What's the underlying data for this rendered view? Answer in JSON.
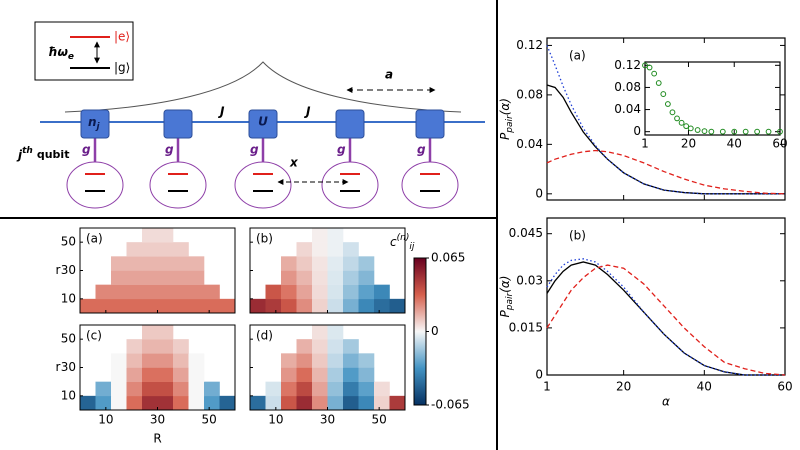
{
  "diagram": {
    "excited": "|e⟩",
    "ground": "|g⟩",
    "energy": "ħω",
    "energy_sub": "e",
    "n": "n",
    "n_sub": "j",
    "U": "U",
    "J": [
      "J",
      "J"
    ],
    "g": [
      "g",
      "g",
      "g",
      "g",
      "g"
    ],
    "a": "a",
    "x": "x",
    "qubit": "j",
    "qubit_sup": "th",
    "qubit_suffix": "qubit"
  },
  "chart_data": [
    {
      "type": "heatmap",
      "xlabel": "R",
      "ylabel": "r",
      "xlim": [
        0,
        60
      ],
      "ylim": [
        0,
        60
      ],
      "xticks": [
        10,
        30,
        50
      ],
      "yticks": [
        10,
        30,
        50
      ],
      "x": [
        3,
        9,
        15,
        21,
        27,
        33,
        39,
        45,
        51,
        57
      ],
      "y": [
        5,
        15,
        25,
        35,
        45,
        55
      ],
      "zlim": [
        -0.065,
        0.065
      ],
      "zticks": [
        -0.065,
        0,
        0.065
      ],
      "colorbar_label": "c",
      "colorbar_label_sub": "ij",
      "colorbar_label_sup": "(n)",
      "colors": [
        "#053061",
        "#4393c3",
        "#f7f7f7",
        "#d6604d",
        "#67001f"
      ],
      "panels": [
        {
          "label": "(a)",
          "z": [
            [
              0.03,
              0.03,
              0.03,
              0.03,
              0.03,
              0.03,
              0.03,
              0.03,
              0.03,
              0.03
            ],
            [
              null,
              0.024,
              0.024,
              0.024,
              0.024,
              0.024,
              0.024,
              0.024,
              0.024,
              null
            ],
            [
              null,
              null,
              0.018,
              0.018,
              0.018,
              0.018,
              0.018,
              0.018,
              null,
              null
            ],
            [
              null,
              null,
              0.014,
              0.014,
              0.014,
              0.014,
              0.014,
              0.014,
              null,
              null
            ],
            [
              null,
              null,
              null,
              0.009,
              0.009,
              0.009,
              0.009,
              null,
              null,
              null
            ],
            [
              null,
              null,
              null,
              null,
              0.006,
              0.006,
              null,
              null,
              null,
              null
            ]
          ]
        },
        {
          "label": "(b)",
          "z": [
            [
              0.05,
              0.045,
              0.036,
              0.023,
              0.008,
              -0.008,
              -0.023,
              -0.036,
              -0.045,
              -0.05
            ],
            [
              null,
              0.036,
              0.028,
              0.018,
              0.006,
              -0.006,
              -0.018,
              -0.028,
              -0.036,
              null
            ],
            [
              null,
              null,
              0.021,
              0.014,
              0.005,
              -0.005,
              -0.014,
              -0.021,
              null,
              null
            ],
            [
              null,
              null,
              0.016,
              0.01,
              0.004,
              -0.004,
              -0.01,
              -0.016,
              null,
              null
            ],
            [
              null,
              null,
              null,
              0.007,
              0.002,
              -0.002,
              -0.007,
              null,
              null,
              null
            ],
            [
              null,
              null,
              null,
              null,
              0.002,
              -0.002,
              null,
              null,
              null,
              null
            ]
          ]
        },
        {
          "label": "(c)",
          "z": [
            [
              -0.048,
              -0.03,
              0,
              0.03,
              0.048,
              0.048,
              0.03,
              0,
              -0.03,
              -0.048
            ],
            [
              null,
              -0.024,
              0,
              0.024,
              0.038,
              0.038,
              0.024,
              0,
              -0.024,
              null
            ],
            [
              null,
              null,
              0,
              0.018,
              0.029,
              0.029,
              0.018,
              0,
              null,
              null
            ],
            [
              null,
              null,
              0,
              0.013,
              0.021,
              0.021,
              0.013,
              0,
              null,
              null
            ],
            [
              null,
              null,
              null,
              0.009,
              0.014,
              0.014,
              0.009,
              null,
              null,
              null
            ],
            [
              null,
              null,
              null,
              null,
              0.01,
              0.01,
              null,
              null,
              null,
              null
            ]
          ]
        },
        {
          "label": "(d)",
          "z": [
            [
              -0.045,
              -0.008,
              0.036,
              0.05,
              0.023,
              -0.023,
              -0.05,
              -0.036,
              0.008,
              0.045
            ],
            [
              null,
              -0.006,
              0.028,
              0.04,
              0.018,
              -0.018,
              -0.04,
              -0.028,
              0.006,
              null
            ],
            [
              null,
              null,
              0.021,
              0.03,
              0.014,
              -0.014,
              -0.03,
              -0.021,
              null,
              null
            ],
            [
              null,
              null,
              0.016,
              0.022,
              0.01,
              -0.01,
              -0.022,
              -0.016,
              null,
              null
            ],
            [
              null,
              null,
              null,
              0.015,
              0.007,
              -0.007,
              -0.015,
              null,
              null,
              null
            ],
            [
              null,
              null,
              null,
              null,
              0.005,
              -0.005,
              null,
              null,
              null,
              null
            ]
          ]
        }
      ]
    },
    {
      "type": "line",
      "label": "(a)",
      "ylabel": "P",
      "ylabel_sub": "pair",
      "ylabel_suffix": "(α)",
      "xlim": [
        1,
        60
      ],
      "ylim": [
        -0.005,
        0.126
      ],
      "xticks": [
        1,
        20,
        40,
        60
      ],
      "show_xtick_labels": false,
      "yticks": [
        0,
        0.04,
        0.08,
        0.12
      ],
      "x": [
        1,
        3,
        5,
        7,
        10,
        13,
        16,
        20,
        25,
        30,
        35,
        40,
        45,
        50,
        55,
        60
      ],
      "series": [
        {
          "color": "#000000",
          "style": "solid",
          "values": [
            0.088,
            0.086,
            0.078,
            0.066,
            0.05,
            0.038,
            0.028,
            0.017,
            0.008,
            0.003,
            0.001,
            0,
            0,
            0,
            0,
            0
          ]
        },
        {
          "color": "#1f3fd6",
          "style": "dotted",
          "values": [
            0.12,
            0.104,
            0.087,
            0.072,
            0.053,
            0.039,
            0.028,
            0.017,
            0.008,
            0.003,
            0.001,
            0,
            0,
            0,
            0,
            0
          ]
        },
        {
          "color": "#e0201b",
          "style": "dashed",
          "values": [
            0.025,
            0.028,
            0.03,
            0.032,
            0.034,
            0.035,
            0.034,
            0.031,
            0.025,
            0.018,
            0.012,
            0.007,
            0.004,
            0.002,
            0.0005,
            0
          ]
        }
      ]
    },
    {
      "type": "scatter",
      "xlim": [
        1,
        60
      ],
      "ylim": [
        -0.006,
        0.126
      ],
      "xticks": [
        1,
        20,
        40,
        60
      ],
      "yticks": [
        0,
        0.04,
        0.08,
        0.12
      ],
      "x": [
        1,
        3,
        5,
        7,
        9,
        11,
        13,
        15,
        17,
        19,
        21,
        24,
        27,
        30,
        35,
        40,
        45,
        50,
        55,
        60
      ],
      "series": [
        {
          "color": "#1e8a1e",
          "values": [
            0.12,
            0.116,
            0.105,
            0.088,
            0.068,
            0.05,
            0.035,
            0.024,
            0.016,
            0.01,
            0.006,
            0.003,
            0.001,
            0,
            0,
            0,
            0,
            0,
            0,
            0
          ]
        }
      ]
    },
    {
      "type": "line",
      "label": "(b)",
      "ylabel": "P",
      "ylabel_sub": "pair",
      "ylabel_suffix": "(α)",
      "xlabel": "α",
      "xlim": [
        1,
        60
      ],
      "ylim": [
        0,
        0.05
      ],
      "xticks": [
        1,
        20,
        40,
        60
      ],
      "yticks": [
        0,
        0.015,
        0.03,
        0.045
      ],
      "x": [
        1,
        3,
        5,
        7,
        10,
        13,
        16,
        20,
        25,
        30,
        35,
        40,
        45,
        50,
        55,
        60
      ],
      "series": [
        {
          "color": "#000000",
          "style": "solid",
          "values": [
            0.026,
            0.03,
            0.033,
            0.035,
            0.036,
            0.035,
            0.032,
            0.027,
            0.02,
            0.013,
            0.007,
            0.003,
            0.001,
            0,
            0,
            0
          ]
        },
        {
          "color": "#1f3fd6",
          "style": "dotted",
          "values": [
            0.028,
            0.032,
            0.035,
            0.0365,
            0.037,
            0.036,
            0.033,
            0.028,
            0.02,
            0.013,
            0.007,
            0.003,
            0.001,
            0,
            0,
            0
          ]
        },
        {
          "color": "#e0201b",
          "style": "dashed",
          "values": [
            0.015,
            0.019,
            0.023,
            0.027,
            0.031,
            0.034,
            0.035,
            0.034,
            0.029,
            0.022,
            0.015,
            0.009,
            0.004,
            0.002,
            0.0005,
            0
          ]
        }
      ]
    }
  ]
}
